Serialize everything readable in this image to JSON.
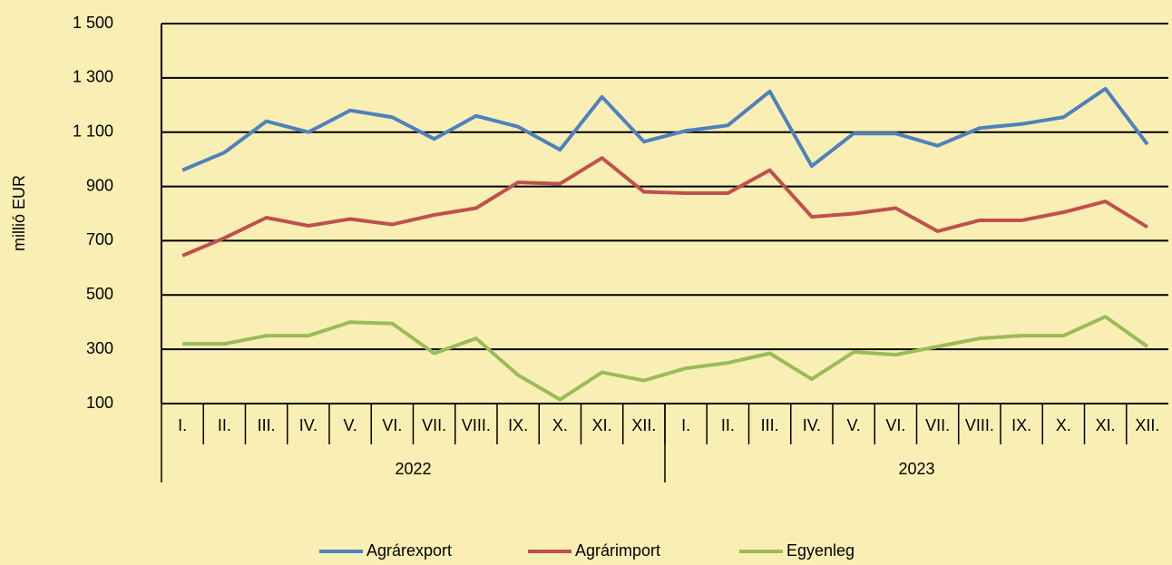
{
  "chart_data": {
    "type": "line",
    "y_label": "millió EUR",
    "categories": [
      "I.",
      "II.",
      "III.",
      "IV.",
      "V.",
      "VI.",
      "VII.",
      "VIII.",
      "IX.",
      "X.",
      "XI.",
      "XII.",
      "I.",
      "II.",
      "III.",
      "IV.",
      "V.",
      "VI.",
      "VII.",
      "VIII.",
      "IX.",
      "X.",
      "XI.",
      "XII."
    ],
    "groups": [
      "2022",
      "2023"
    ],
    "ylim": [
      100,
      1500
    ],
    "yticks": [
      100,
      300,
      500,
      700,
      900,
      {
        "value": 1100,
        "label": "1 100"
      },
      {
        "value": 1300,
        "label": "1 300"
      },
      {
        "value": 1500,
        "label": "1 500"
      }
    ],
    "grid": true,
    "legend": "bottom",
    "series": [
      {
        "name": "Agrárexport",
        "color": "#4f81bd",
        "values": [
          960,
          1025,
          1140,
          1100,
          1180,
          1155,
          1075,
          1160,
          1120,
          1035,
          1230,
          1065,
          1105,
          1125,
          1250,
          975,
          1095,
          1095,
          1050,
          1115,
          1130,
          1155,
          1260,
          1055
        ]
      },
      {
        "name": "Agrárimport",
        "color": "#c0504d",
        "values": [
          645,
          710,
          785,
          755,
          780,
          760,
          795,
          820,
          915,
          910,
          1005,
          880,
          875,
          875,
          960,
          788,
          800,
          820,
          735,
          775,
          775,
          805,
          845,
          750
        ]
      },
      {
        "name": "Egyenleg",
        "color": "#9bbb59",
        "values": [
          320,
          320,
          350,
          350,
          400,
          395,
          285,
          340,
          205,
          115,
          215,
          185,
          230,
          250,
          285,
          190,
          290,
          280,
          310,
          340,
          350,
          350,
          420,
          310
        ]
      }
    ]
  }
}
